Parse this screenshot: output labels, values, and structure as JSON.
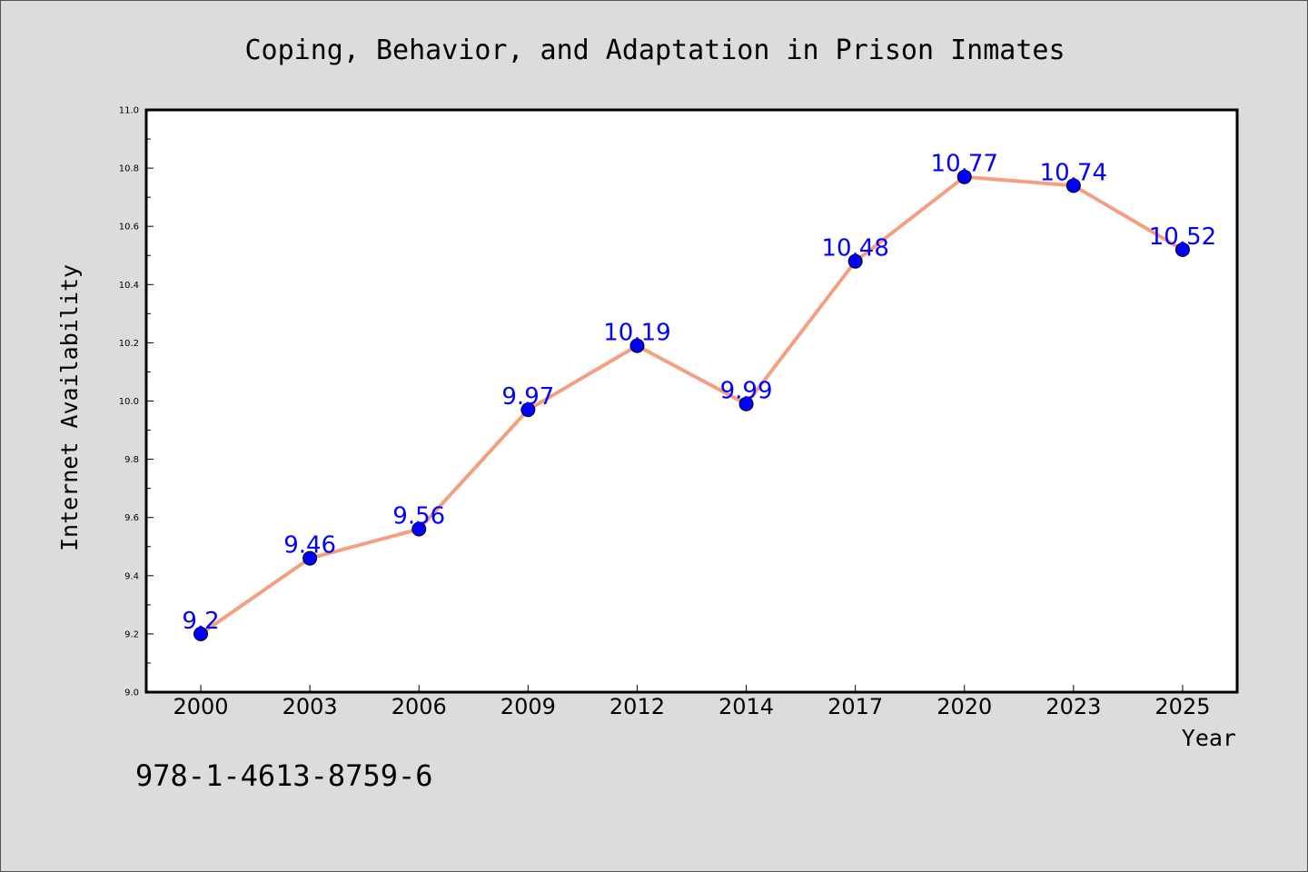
{
  "chart_data": {
    "type": "line",
    "title": "Coping, Behavior, and Adaptation in Prison Inmates",
    "xlabel": "Year",
    "ylabel": "Internet Availability",
    "categories": [
      "2000",
      "2003",
      "2006",
      "2009",
      "2012",
      "2014",
      "2017",
      "2020",
      "2023",
      "2025"
    ],
    "series": [
      {
        "values": [
          9.2,
          9.46,
          9.56,
          9.97,
          10.19,
          9.99,
          10.48,
          10.77,
          10.74,
          10.52
        ],
        "data_labels": [
          "9.2",
          "9.46",
          "9.56",
          "9.97",
          "10.19",
          "9.99",
          "10.48",
          "10.77",
          "10.74",
          "10.52"
        ]
      }
    ],
    "ylim": [
      9.0,
      11.0
    ],
    "yticks": [
      "9.0",
      "9.2",
      "9.4",
      "9.6",
      "9.8",
      "10.0",
      "10.2",
      "10.4",
      "10.6",
      "10.8",
      "11.0"
    ],
    "grid": false,
    "colors": {
      "line": "#f4a080",
      "marker": "#0000ff",
      "data_label": "#0000ff",
      "plot_background": "#ffffff",
      "figure_background": "#dcdcdc"
    }
  },
  "footer_text": "978-1-4613-8759-6"
}
